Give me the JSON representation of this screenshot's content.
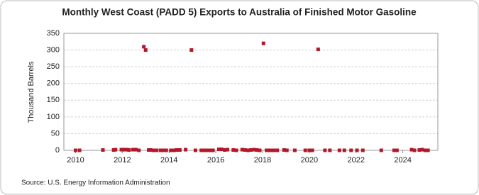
{
  "chart_data": {
    "type": "scatter",
    "title": "Monthly West Coast (PADD 5) Exports to Australia of Finished Motor Gasoline",
    "y_label": "Thousand Barrels",
    "source": "Source: U.S. Energy Information Administration",
    "color": "#b2182b",
    "grid": true,
    "xlim": [
      2009.5,
      2025.5
    ],
    "xticks": [
      2010,
      2012,
      2014,
      2016,
      2018,
      2020,
      2022,
      2024
    ],
    "ylim": [
      0,
      350
    ],
    "yticks": [
      0,
      50,
      100,
      150,
      200,
      250,
      300,
      350
    ],
    "x": [
      2010.0,
      2010.17,
      2011.17,
      2011.63,
      2011.71,
      2011.96,
      2012.04,
      2012.13,
      2012.21,
      2012.29,
      2012.46,
      2012.58,
      2012.71,
      2012.92,
      2013.0,
      2013.13,
      2013.21,
      2013.33,
      2013.46,
      2013.63,
      2013.75,
      2013.88,
      2014.08,
      2014.21,
      2014.33,
      2014.46,
      2014.71,
      2014.96,
      2015.13,
      2015.38,
      2015.5,
      2015.63,
      2015.75,
      2015.88,
      2016.13,
      2016.25,
      2016.38,
      2016.5,
      2016.75,
      2016.88,
      2017.13,
      2017.25,
      2017.38,
      2017.5,
      2017.63,
      2017.75,
      2017.88,
      2018.04,
      2018.17,
      2018.29,
      2018.38,
      2018.5,
      2018.63,
      2018.92,
      2019.04,
      2019.38,
      2019.83,
      2020.0,
      2020.13,
      2020.38,
      2020.67,
      2020.88,
      2021.29,
      2021.5,
      2021.79,
      2022.04,
      2022.29,
      2023.08,
      2023.63,
      2023.75,
      2024.38,
      2024.5,
      2024.71,
      2024.83,
      2024.96,
      2025.08
    ],
    "values": [
      0,
      0,
      1,
      1,
      2,
      2,
      2,
      2,
      2,
      1,
      2,
      2,
      0,
      310,
      300,
      1,
      1,
      0,
      0,
      0,
      0,
      0,
      0,
      0,
      1,
      1,
      2,
      300,
      0,
      0,
      0,
      0,
      0,
      0,
      3,
      3,
      1,
      2,
      1,
      0,
      2,
      1,
      0,
      1,
      2,
      1,
      0,
      320,
      0,
      0,
      0,
      0,
      0,
      1,
      0,
      0,
      0,
      0,
      0,
      302,
      0,
      0,
      0,
      0,
      0,
      0,
      0,
      0,
      0,
      0,
      2,
      0,
      1,
      2,
      0,
      0
    ]
  }
}
